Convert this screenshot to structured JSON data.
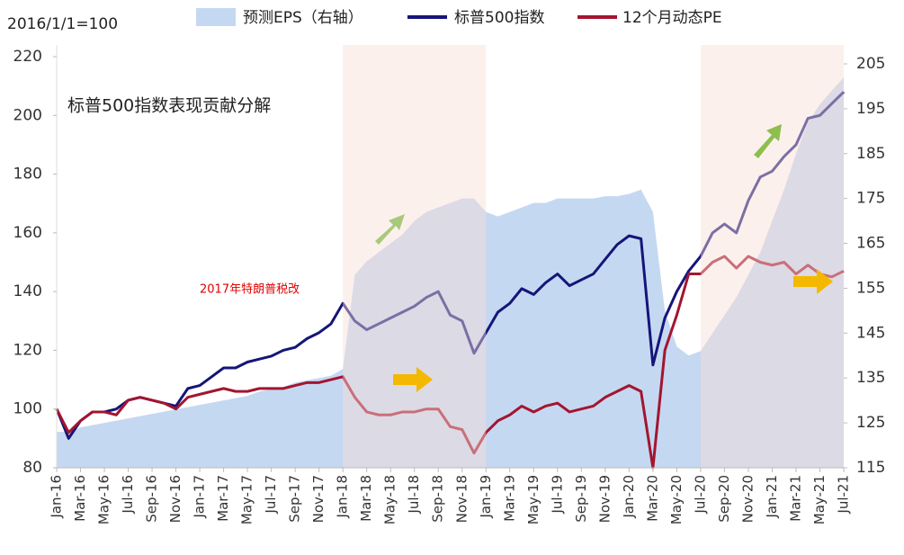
{
  "chart_data": {
    "type": "line",
    "y_axis_label": "2016/1/1=100",
    "annotations": [
      "标普500指数表现贡献分解",
      "2017年特朗普税改"
    ],
    "categories": [
      "Jan-16",
      null,
      "Mar-16",
      null,
      "May-16",
      null,
      "Jul-16",
      null,
      "Sep-16",
      null,
      "Nov-16",
      null,
      "Jan-17",
      null,
      "Mar-17",
      null,
      "May-17",
      null,
      "Jul-17",
      null,
      "Sep-17",
      null,
      "Nov-17",
      null,
      "Jan-18",
      null,
      "Mar-18",
      null,
      "May-18",
      null,
      "Jul-18",
      null,
      "Sep-18",
      null,
      "Nov-18",
      null,
      "Jan-19",
      null,
      "Mar-19",
      null,
      "May-19",
      null,
      "Jul-19",
      null,
      "Sep-19",
      null,
      "Nov-19",
      null,
      "Jan-20",
      null,
      "Mar-20",
      null,
      "May-20",
      null,
      "Jul-20",
      null,
      "Sep-20",
      null,
      "Nov-20",
      null,
      "Jan-21",
      null,
      "Mar-21",
      null,
      "May-21",
      null,
      "Jul-21"
    ],
    "series": [
      {
        "name": "预测EPS（右轴）",
        "type": "area",
        "axis": "y2",
        "color": "#c5d8f1",
        "values": [
          123,
          123,
          124,
          124.5,
          125,
          125.5,
          126,
          126.5,
          127,
          127.5,
          128,
          128.5,
          129,
          129.5,
          130,
          130.5,
          131,
          132,
          132.5,
          133,
          134,
          134.5,
          135,
          135.5,
          137,
          158,
          161,
          163,
          165,
          167,
          170,
          172,
          173,
          174,
          175,
          175,
          172,
          171,
          172,
          173,
          174,
          174,
          175,
          175,
          175,
          175,
          175.5,
          175.5,
          176,
          177,
          172,
          150,
          142,
          140,
          141,
          145,
          149,
          153,
          158,
          163,
          170,
          177,
          185,
          192,
          196,
          199,
          202
        ]
      },
      {
        "name": "标普500指数",
        "type": "line",
        "color": "#15157a",
        "values": [
          100,
          90,
          96,
          99,
          99,
          100,
          103,
          104,
          103,
          102,
          101,
          107,
          108,
          111,
          114,
          114,
          116,
          117,
          118,
          120,
          121,
          124,
          126,
          129,
          136,
          130,
          127,
          129,
          131,
          133,
          135,
          138,
          140,
          132,
          130,
          119,
          126,
          133,
          136,
          141,
          139,
          143,
          146,
          142,
          144,
          146,
          151,
          156,
          159,
          158,
          115,
          131,
          140,
          147,
          152,
          160,
          163,
          160,
          171,
          179,
          181,
          186,
          190,
          199,
          200,
          204,
          208
        ]
      },
      {
        "name": "12个月动态PE",
        "type": "line",
        "color": "#a3152f",
        "values": [
          100,
          92,
          96,
          99,
          99,
          98,
          103,
          104,
          103,
          102,
          100,
          104,
          105,
          106,
          107,
          106,
          106,
          107,
          107,
          107,
          108,
          109,
          109,
          110,
          111,
          104,
          99,
          98,
          98,
          99,
          99,
          100,
          100,
          94,
          93,
          85,
          92,
          96,
          98,
          101,
          99,
          101,
          102,
          99,
          100,
          101,
          104,
          106,
          108,
          106,
          80,
          120,
          132,
          146,
          146,
          150,
          152,
          148,
          152,
          150,
          149,
          150,
          146,
          149,
          146,
          145,
          147
        ]
      }
    ],
    "ylim": [
      80,
      220
    ],
    "yticks": [
      80,
      100,
      120,
      140,
      160,
      180,
      200,
      220
    ],
    "y2lim": [
      115,
      205
    ],
    "y2ticks": [
      115,
      125,
      135,
      145,
      155,
      165,
      175,
      185,
      195,
      205
    ],
    "legend": "top"
  }
}
